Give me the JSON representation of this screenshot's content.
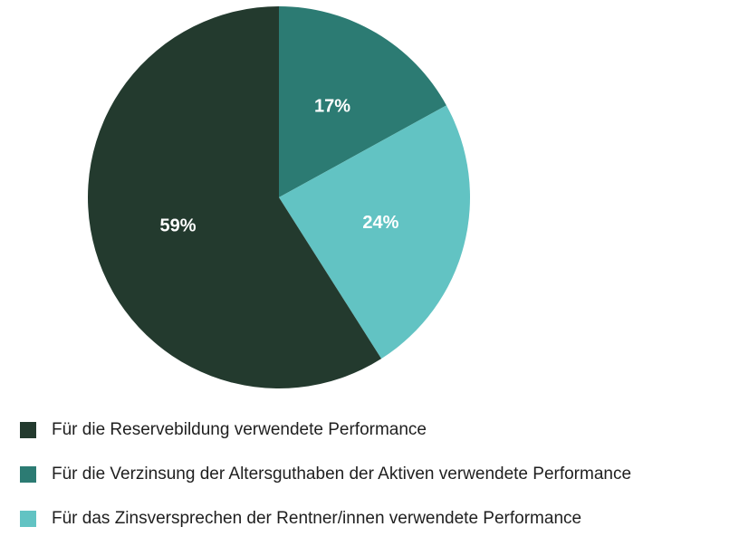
{
  "chart_data": {
    "type": "pie",
    "categories": [
      "Für die Reservebildung verwendete Performance",
      "Für die Verzinsung der Altersguthaben der Aktiven verwendete Performance",
      "Für das Zinsversprechen der Rentner/innen verwendete Performance"
    ],
    "values": [
      59,
      17,
      24
    ],
    "value_labels": [
      "59%",
      "17%",
      "24%"
    ],
    "colors": [
      "#233a2e",
      "#2c7b73",
      "#62c3c3"
    ],
    "title": "",
    "legend_position": "bottom-left"
  },
  "legend": {
    "items": [
      {
        "label": "Für die Reservebildung verwendete Performance",
        "color": "#233a2e"
      },
      {
        "label": "Für die Verzinsung der Altersguthaben der Aktiven verwendete Performance",
        "color": "#2c7b73"
      },
      {
        "label": "Für das Zinsversprechen der Rentner/innen verwendete Performance",
        "color": "#62c3c3"
      }
    ]
  }
}
